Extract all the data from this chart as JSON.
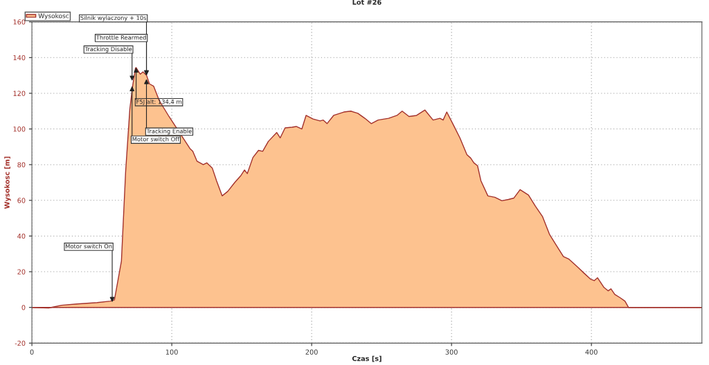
{
  "chart_data": {
    "type": "area",
    "title": "Lot #26",
    "xlabel": "Czas [s]",
    "ylabel": "Wysokosc [m]",
    "x": [
      0,
      12,
      21,
      32,
      46.6,
      56,
      59,
      64,
      67,
      70,
      72,
      74,
      74.5,
      77.5,
      79.4,
      82,
      84,
      87,
      91,
      98,
      103,
      108,
      113,
      115,
      118,
      122.5,
      125,
      129,
      132,
      136,
      140,
      145,
      149.5,
      152,
      154,
      158,
      162,
      165,
      169,
      175,
      177.5,
      181,
      186,
      189,
      193,
      196,
      201,
      206,
      208.3,
      211,
      215.7,
      223,
      228,
      233,
      238,
      242.6,
      247.5,
      255,
      261,
      264.7,
      269.6,
      275,
      281,
      286.8,
      291.7,
      294,
      296.6,
      301.5,
      306,
      311,
      313.7,
      316,
      318.6,
      321,
      326,
      331,
      336,
      340.7,
      344.6,
      349,
      355,
      360,
      365,
      370,
      375,
      380,
      384,
      390,
      394.6,
      399.5,
      402,
      404.4,
      409,
      412,
      414,
      416.7,
      420.6,
      424,
      426.5,
      448.5,
      479
    ],
    "series": [
      {
        "name": "Wysokosc",
        "color": "#fdc28f",
        "values": [
          0,
          -0.3,
          1.2,
          1.9,
          2.7,
          3.5,
          4.2,
          26,
          76,
          111,
          124,
          134,
          134.4,
          130.7,
          132,
          130,
          125.3,
          124,
          116,
          107,
          101,
          95,
          89,
          87.5,
          82,
          80,
          81,
          78,
          71,
          62.5,
          65,
          70,
          74,
          77,
          75,
          84,
          88,
          87.5,
          93,
          98,
          95,
          100.6,
          101,
          101.4,
          100,
          107.6,
          105.6,
          104.5,
          105,
          103,
          107.6,
          109.5,
          110,
          108.8,
          106,
          103,
          105,
          106,
          107.6,
          110,
          107,
          107.6,
          110.6,
          105,
          106,
          105,
          109.5,
          102,
          95,
          85.6,
          83.7,
          81,
          79.4,
          71,
          62.5,
          61.7,
          59.8,
          60.5,
          61.3,
          66,
          63,
          56.7,
          51,
          41,
          34.7,
          28.5,
          27,
          22.7,
          19.3,
          15.8,
          15,
          16.6,
          11.2,
          9.3,
          10.4,
          7.3,
          5.4,
          3.5,
          0,
          0,
          0
        ]
      }
    ],
    "xlim": [
      0,
      479
    ],
    "xticks": [
      0,
      100,
      200,
      300,
      400
    ],
    "ylim": [
      -20,
      160
    ],
    "yticks": [
      -20,
      0,
      20,
      40,
      60,
      80,
      100,
      120,
      140,
      160
    ],
    "grid": true,
    "legend": "top left",
    "annotations": [
      {
        "text": "Motor switch On",
        "x": 57.4,
        "y": 3
      },
      {
        "text": "Tracking Disable",
        "x": 71.6,
        "y": 127
      },
      {
        "text": "Motor switch Off",
        "x": 71.6,
        "y": 124
      },
      {
        "text": "F5J alt: 134,4 m",
        "x": 74.5,
        "y": 134.4
      },
      {
        "text": "Throttle Rearmed",
        "x": 81.9,
        "y": 130
      },
      {
        "text": "Silnik wylaczony + 10s",
        "x": 81.9,
        "y": 130
      },
      {
        "text": "Tracking Enable",
        "x": 81.9,
        "y": 128
      }
    ]
  }
}
